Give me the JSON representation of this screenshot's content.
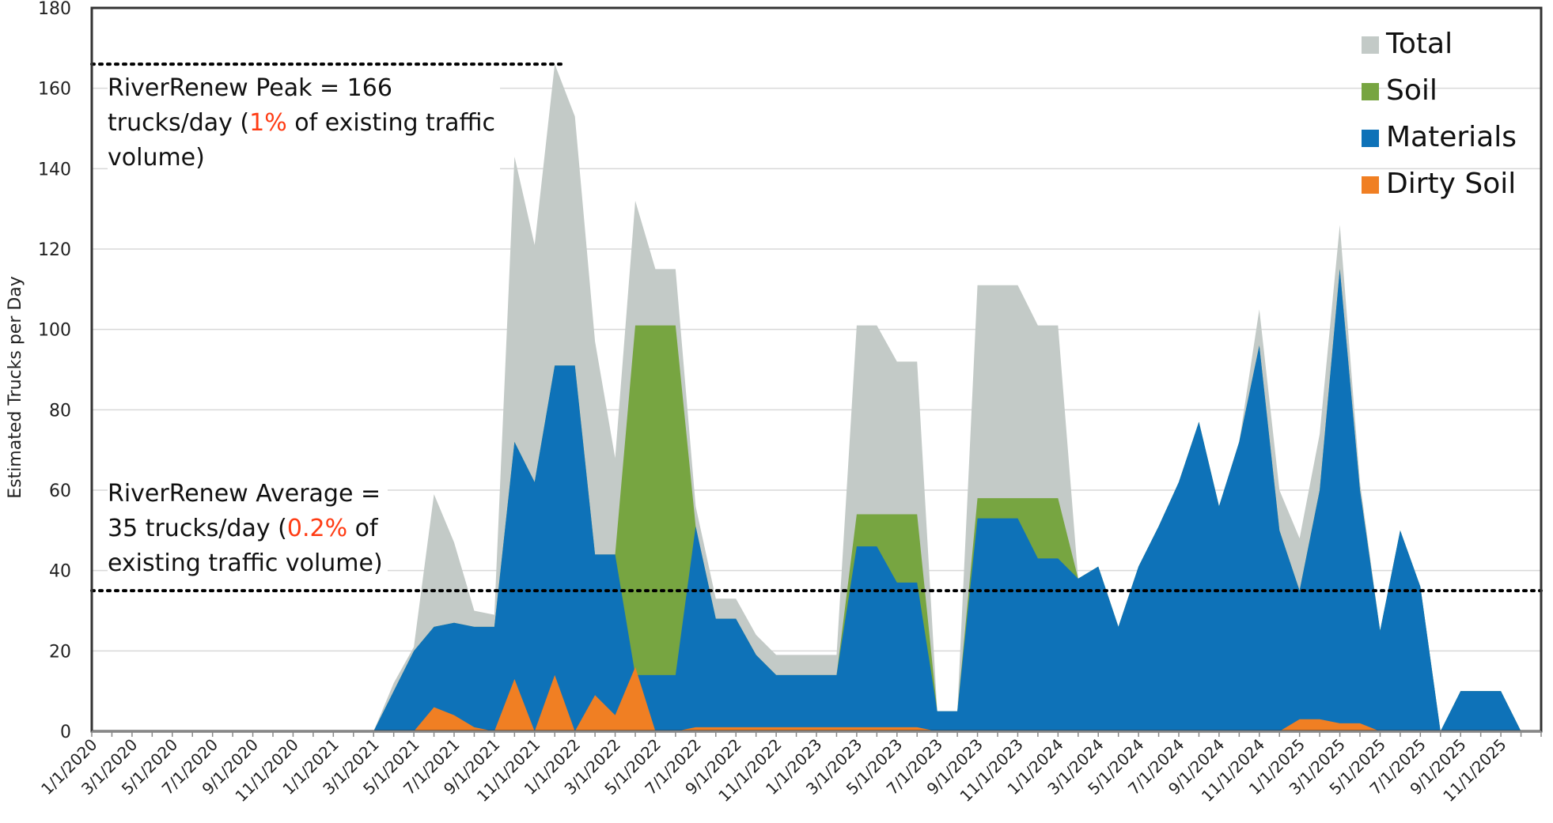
{
  "chart_data": {
    "type": "area",
    "ylabel": "Estimated Trucks per Day",
    "ylim": [
      0,
      180
    ],
    "yticks": [
      0,
      20,
      40,
      60,
      80,
      100,
      120,
      140,
      160,
      180
    ],
    "x_tick_labels": [
      "1/1/2020",
      "3/1/2020",
      "5/1/2020",
      "7/1/2020",
      "9/1/2020",
      "11/1/2020",
      "1/1/2021",
      "3/1/2021",
      "5/1/2021",
      "7/1/2021",
      "9/1/2021",
      "11/1/2021",
      "1/1/2022",
      "3/1/2022",
      "5/1/2022",
      "7/1/2022",
      "9/1/2022",
      "11/1/2022",
      "1/1/2023",
      "3/1/2023",
      "5/1/2023",
      "7/1/2023",
      "9/1/2023",
      "11/1/2023",
      "1/1/2024",
      "3/1/2024",
      "5/1/2024",
      "7/1/2024",
      "9/1/2024",
      "11/1/2024",
      "1/1/2025",
      "3/1/2025",
      "5/1/2025",
      "7/1/2025",
      "9/1/2025",
      "11/1/2025"
    ],
    "x_range": [
      "1/1/2020",
      "12/1/2025"
    ],
    "grid": "horizontal",
    "legend_position": "top-right",
    "series": [
      {
        "name": "Total",
        "color": "#c3cac7",
        "points": [
          [
            "1/1/2020",
            0
          ],
          [
            "2/1/2021",
            0
          ],
          [
            "3/1/2021",
            0
          ],
          [
            "4/1/2021",
            12
          ],
          [
            "5/1/2021",
            21
          ],
          [
            "6/1/2021",
            59
          ],
          [
            "7/1/2021",
            47
          ],
          [
            "8/1/2021",
            30
          ],
          [
            "9/1/2021",
            29
          ],
          [
            "10/1/2021",
            143
          ],
          [
            "11/1/2021",
            121
          ],
          [
            "12/1/2021",
            166
          ],
          [
            "1/1/2022",
            153
          ],
          [
            "2/1/2022",
            97
          ],
          [
            "3/1/2022",
            68
          ],
          [
            "4/1/2022",
            132
          ],
          [
            "5/1/2022",
            115
          ],
          [
            "6/1/2022",
            115
          ],
          [
            "7/1/2022",
            56
          ],
          [
            "8/1/2022",
            33
          ],
          [
            "9/1/2022",
            33
          ],
          [
            "10/1/2022",
            24
          ],
          [
            "11/1/2022",
            19
          ],
          [
            "12/1/2022",
            19
          ],
          [
            "1/1/2023",
            19
          ],
          [
            "2/1/2023",
            19
          ],
          [
            "3/1/2023",
            101
          ],
          [
            "4/1/2023",
            101
          ],
          [
            "5/1/2023",
            92
          ],
          [
            "6/1/2023",
            92
          ],
          [
            "7/1/2023",
            5
          ],
          [
            "8/1/2023",
            5
          ],
          [
            "9/1/2023",
            111
          ],
          [
            "10/1/2023",
            111
          ],
          [
            "11/1/2023",
            111
          ],
          [
            "12/1/2023",
            101
          ],
          [
            "1/1/2024",
            101
          ],
          [
            "2/1/2024",
            38
          ],
          [
            "3/1/2024",
            41
          ],
          [
            "4/1/2024",
            26
          ],
          [
            "5/1/2024",
            41
          ],
          [
            "6/1/2024",
            51
          ],
          [
            "7/1/2024",
            62
          ],
          [
            "8/1/2024",
            77
          ],
          [
            "9/1/2024",
            56
          ],
          [
            "10/1/2024",
            72
          ],
          [
            "11/1/2024",
            105
          ],
          [
            "12/1/2024",
            60
          ],
          [
            "1/1/2025",
            48
          ],
          [
            "2/1/2025",
            74
          ],
          [
            "3/1/2025",
            126
          ],
          [
            "4/1/2025",
            62
          ],
          [
            "5/1/2025",
            25
          ],
          [
            "6/1/2025",
            50
          ],
          [
            "7/1/2025",
            36
          ],
          [
            "8/1/2025",
            0
          ],
          [
            "9/1/2025",
            10
          ],
          [
            "10/1/2025",
            10
          ],
          [
            "11/1/2025",
            10
          ],
          [
            "12/1/2025",
            0
          ]
        ]
      },
      {
        "name": "Soil",
        "color": "#77a541",
        "points": [
          [
            "1/1/2020",
            0
          ],
          [
            "2/1/2021",
            0
          ],
          [
            "3/1/2021",
            0
          ],
          [
            "4/1/2021",
            10
          ],
          [
            "5/1/2021",
            20
          ],
          [
            "6/1/2021",
            26
          ],
          [
            "7/1/2021",
            27
          ],
          [
            "8/1/2021",
            26
          ],
          [
            "9/1/2021",
            26
          ],
          [
            "10/1/2021",
            72
          ],
          [
            "11/1/2021",
            62
          ],
          [
            "12/1/2021",
            91
          ],
          [
            "1/1/2022",
            91
          ],
          [
            "2/1/2022",
            44
          ],
          [
            "3/1/2022",
            44
          ],
          [
            "4/1/2022",
            101
          ],
          [
            "5/1/2022",
            101
          ],
          [
            "6/1/2022",
            101
          ],
          [
            "7/1/2022",
            51
          ],
          [
            "8/1/2022",
            28
          ],
          [
            "9/1/2022",
            28
          ],
          [
            "10/1/2022",
            19
          ],
          [
            "11/1/2022",
            14
          ],
          [
            "12/1/2022",
            14
          ],
          [
            "1/1/2023",
            14
          ],
          [
            "2/1/2023",
            14
          ],
          [
            "3/1/2023",
            54
          ],
          [
            "4/1/2023",
            54
          ],
          [
            "5/1/2023",
            54
          ],
          [
            "6/1/2023",
            54
          ],
          [
            "7/1/2023",
            5
          ],
          [
            "8/1/2023",
            5
          ],
          [
            "9/1/2023",
            58
          ],
          [
            "10/1/2023",
            58
          ],
          [
            "11/1/2023",
            58
          ],
          [
            "12/1/2023",
            58
          ],
          [
            "1/1/2024",
            58
          ],
          [
            "2/1/2024",
            38
          ],
          [
            "3/1/2024",
            41
          ],
          [
            "4/1/2024",
            26
          ],
          [
            "5/1/2024",
            41
          ],
          [
            "6/1/2024",
            51
          ],
          [
            "7/1/2024",
            62
          ],
          [
            "8/1/2024",
            77
          ],
          [
            "9/1/2024",
            56
          ],
          [
            "10/1/2024",
            72
          ],
          [
            "11/1/2024",
            96
          ],
          [
            "12/1/2024",
            50
          ],
          [
            "1/1/2025",
            35
          ],
          [
            "2/1/2025",
            60
          ],
          [
            "3/1/2025",
            115
          ],
          [
            "4/1/2025",
            60
          ],
          [
            "5/1/2025",
            25
          ],
          [
            "6/1/2025",
            50
          ],
          [
            "7/1/2025",
            36
          ],
          [
            "8/1/2025",
            0
          ],
          [
            "9/1/2025",
            10
          ],
          [
            "10/1/2025",
            10
          ],
          [
            "11/1/2025",
            10
          ],
          [
            "12/1/2025",
            0
          ]
        ]
      },
      {
        "name": "Materials",
        "color": "#0e72b8",
        "points": [
          [
            "1/1/2020",
            0
          ],
          [
            "2/1/2021",
            0
          ],
          [
            "3/1/2021",
            0
          ],
          [
            "4/1/2021",
            10
          ],
          [
            "5/1/2021",
            20
          ],
          [
            "6/1/2021",
            26
          ],
          [
            "7/1/2021",
            27
          ],
          [
            "8/1/2021",
            26
          ],
          [
            "9/1/2021",
            26
          ],
          [
            "10/1/2021",
            72
          ],
          [
            "11/1/2021",
            62
          ],
          [
            "12/1/2021",
            91
          ],
          [
            "1/1/2022",
            91
          ],
          [
            "2/1/2022",
            44
          ],
          [
            "3/1/2022",
            44
          ],
          [
            "4/1/2022",
            14
          ],
          [
            "5/1/2022",
            14
          ],
          [
            "6/1/2022",
            14
          ],
          [
            "7/1/2022",
            51
          ],
          [
            "8/1/2022",
            28
          ],
          [
            "9/1/2022",
            28
          ],
          [
            "10/1/2022",
            19
          ],
          [
            "11/1/2022",
            14
          ],
          [
            "12/1/2022",
            14
          ],
          [
            "1/1/2023",
            14
          ],
          [
            "2/1/2023",
            14
          ],
          [
            "3/1/2023",
            46
          ],
          [
            "4/1/2023",
            46
          ],
          [
            "5/1/2023",
            37
          ],
          [
            "6/1/2023",
            37
          ],
          [
            "7/1/2023",
            5
          ],
          [
            "8/1/2023",
            5
          ],
          [
            "9/1/2023",
            53
          ],
          [
            "10/1/2023",
            53
          ],
          [
            "11/1/2023",
            53
          ],
          [
            "12/1/2023",
            43
          ],
          [
            "1/1/2024",
            43
          ],
          [
            "2/1/2024",
            38
          ],
          [
            "3/1/2024",
            41
          ],
          [
            "4/1/2024",
            26
          ],
          [
            "5/1/2024",
            41
          ],
          [
            "6/1/2024",
            51
          ],
          [
            "7/1/2024",
            62
          ],
          [
            "8/1/2024",
            77
          ],
          [
            "9/1/2024",
            56
          ],
          [
            "10/1/2024",
            72
          ],
          [
            "11/1/2024",
            96
          ],
          [
            "12/1/2024",
            50
          ],
          [
            "1/1/2025",
            35
          ],
          [
            "2/1/2025",
            60
          ],
          [
            "3/1/2025",
            115
          ],
          [
            "4/1/2025",
            60
          ],
          [
            "5/1/2025",
            25
          ],
          [
            "6/1/2025",
            50
          ],
          [
            "7/1/2025",
            36
          ],
          [
            "8/1/2025",
            0
          ],
          [
            "9/1/2025",
            10
          ],
          [
            "10/1/2025",
            10
          ],
          [
            "11/1/2025",
            10
          ],
          [
            "12/1/2025",
            0
          ]
        ]
      },
      {
        "name": "Dirty Soil",
        "color": "#f07f23",
        "points": [
          [
            "1/1/2020",
            0
          ],
          [
            "5/1/2021",
            0
          ],
          [
            "6/1/2021",
            6
          ],
          [
            "7/1/2021",
            4
          ],
          [
            "8/1/2021",
            1
          ],
          [
            "9/1/2021",
            0
          ],
          [
            "10/1/2021",
            13
          ],
          [
            "11/1/2021",
            0
          ],
          [
            "12/1/2021",
            14
          ],
          [
            "1/1/2022",
            0
          ],
          [
            "2/1/2022",
            9
          ],
          [
            "3/1/2022",
            4
          ],
          [
            "4/1/2022",
            16
          ],
          [
            "5/1/2022",
            0
          ],
          [
            "6/1/2022",
            0
          ],
          [
            "7/1/2022",
            1
          ],
          [
            "8/1/2022",
            1
          ],
          [
            "9/1/2022",
            1
          ],
          [
            "10/1/2022",
            1
          ],
          [
            "11/1/2022",
            1
          ],
          [
            "12/1/2022",
            1
          ],
          [
            "1/1/2023",
            1
          ],
          [
            "2/1/2023",
            1
          ],
          [
            "3/1/2023",
            1
          ],
          [
            "4/1/2023",
            1
          ],
          [
            "5/1/2023",
            1
          ],
          [
            "6/1/2023",
            1
          ],
          [
            "7/1/2023",
            0
          ],
          [
            "12/1/2024",
            0
          ],
          [
            "1/1/2025",
            3
          ],
          [
            "2/1/2025",
            3
          ],
          [
            "3/1/2025",
            2
          ],
          [
            "4/1/2025",
            2
          ],
          [
            "5/1/2025",
            0
          ],
          [
            "12/1/2025",
            0
          ]
        ]
      }
    ],
    "reference_lines": [
      {
        "y": 166,
        "x_end": "12/1/2021",
        "style": "dotted"
      },
      {
        "y": 35,
        "style": "dotted"
      }
    ]
  },
  "annotations": {
    "peak": {
      "line1": "RiverRenew Peak = 166",
      "line2a": "trucks/day (",
      "line2b": "1%",
      "line2c": " of existing traffic",
      "line3": "volume)"
    },
    "average": {
      "line1": "RiverRenew Average =",
      "line2a": "35 trucks/day (",
      "line2b": "0.2%",
      "line2c": " of",
      "line3": "existing traffic volume)"
    },
    "highlight_color": "#ff3c14"
  }
}
